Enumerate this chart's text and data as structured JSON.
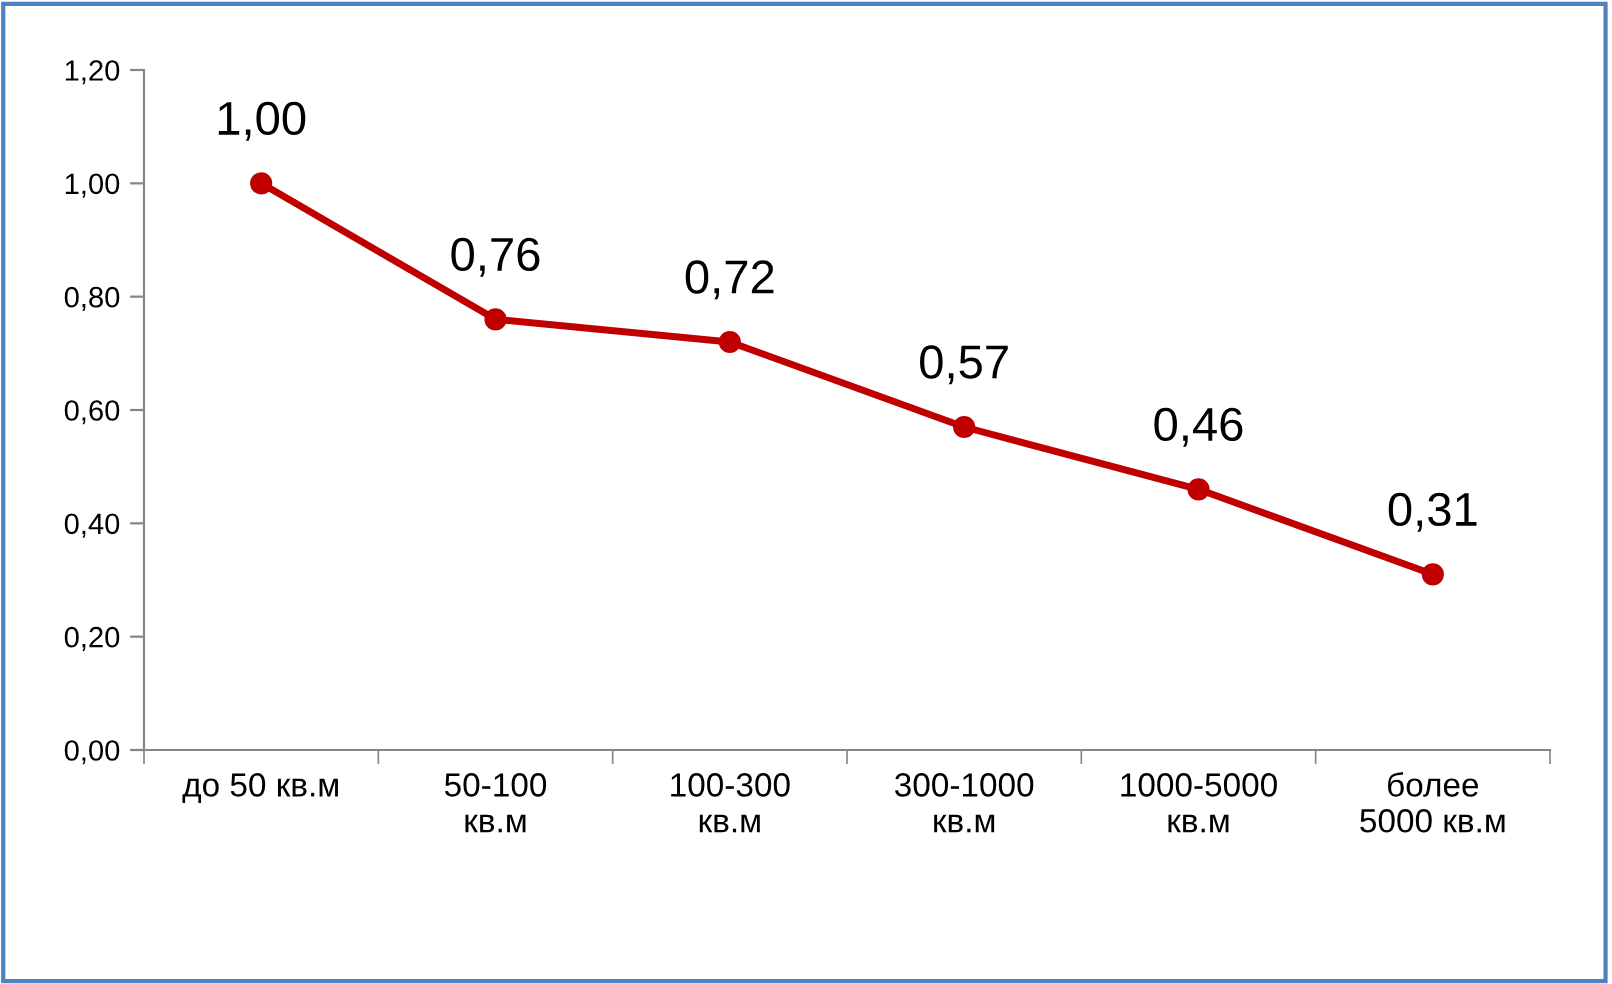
{
  "chart_data": {
    "type": "line",
    "categories": [
      "до 50 кв.м",
      "50-100\nкв.м",
      "100-300\nкв.м",
      "300-1000\nкв.м",
      "1000-5000\nкв.м",
      "более\n5000 кв.м"
    ],
    "series": [
      {
        "color": "#c00000",
        "values": [
          1.0,
          0.76,
          0.72,
          0.57,
          0.46,
          0.31
        ],
        "value_labels": [
          "1,00",
          "0,76",
          "0,72",
          "0,57",
          "0,46",
          "0,31"
        ]
      }
    ],
    "ylim": [
      0,
      1.2
    ],
    "yticks": [
      {
        "value": 0,
        "label": "0,00"
      },
      {
        "value": 0.2,
        "label": "0,20"
      },
      {
        "value": 0.4,
        "label": "0,40"
      },
      {
        "value": 0.6,
        "label": "0,60"
      },
      {
        "value": 0.8,
        "label": "0,80"
      },
      {
        "value": 1.0,
        "label": "1,00"
      },
      {
        "value": 1.2,
        "label": "1,20"
      }
    ],
    "marker": "circle",
    "line_style": "solid",
    "grid": false,
    "legend": false
  }
}
